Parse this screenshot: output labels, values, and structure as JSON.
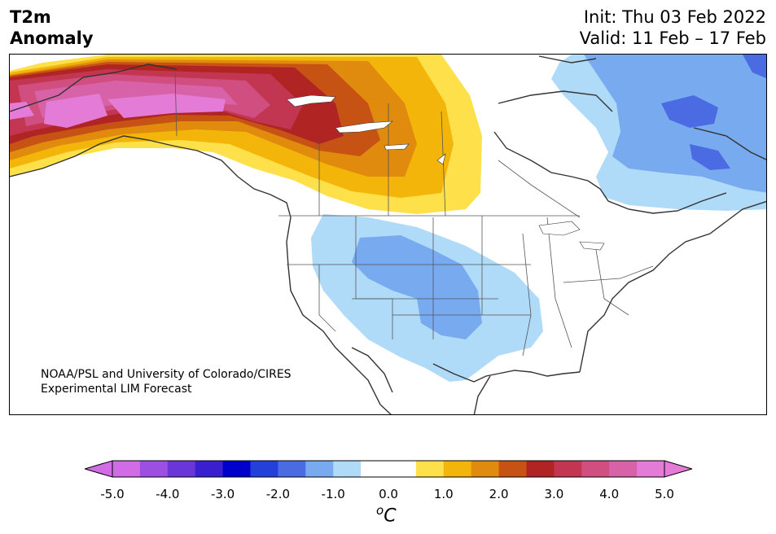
{
  "header": {
    "title_line1": "T2m",
    "title_line2": "Anomaly",
    "init_label": "Init: Thu 03 Feb 2022",
    "valid_label": "Valid: 11 Feb – 17 Feb"
  },
  "map": {
    "credit_line1": "NOAA/PSL and University of Colorado/CIRES",
    "credit_line2": "Experimental LIM Forecast"
  },
  "colorbar": {
    "unit_base": "C",
    "unit_sup": "o",
    "ticks": [
      "-5.0",
      "-4.0",
      "-3.0",
      "-2.0",
      "-1.0",
      "0.0",
      "1.0",
      "2.0",
      "3.0",
      "4.0",
      "5.0"
    ],
    "colors": [
      "#d16be6",
      "#9c4fe0",
      "#6a35d9",
      "#3a1fd0",
      "#0000cc",
      "#2340db",
      "#4b6be3",
      "#78aaf0",
      "#b0dbf8",
      "#ffffff",
      "#ffffff",
      "#fde04a",
      "#f3b50a",
      "#e08a0e",
      "#c65214",
      "#b02424",
      "#c23652",
      "#d04e80",
      "#d862a8",
      "#e47bd6"
    ],
    "under_color": "#d16be6",
    "over_color": "#e47bd6"
  }
}
